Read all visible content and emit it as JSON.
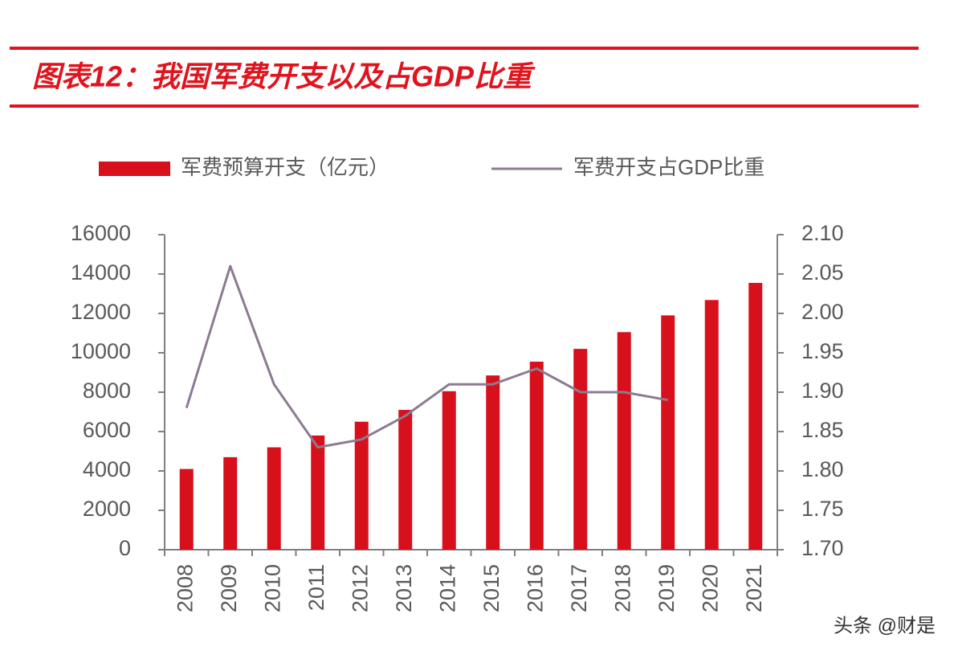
{
  "chart_data": {
    "type": "bar_line",
    "title": "图表12：我国军费开支以及占GDP比重",
    "categories": [
      "2008",
      "2009",
      "2010",
      "2011",
      "2012",
      "2013",
      "2014",
      "2015",
      "2016",
      "2017",
      "2018",
      "2019",
      "2020",
      "2021"
    ],
    "series": [
      {
        "name": "军费预算开支（亿元）",
        "color": "#d7101c",
        "type": "bar",
        "values": [
          4100,
          4700,
          5200,
          5800,
          6500,
          7100,
          8050,
          8850,
          9550,
          10200,
          11050,
          11900,
          12680,
          13550
        ]
      },
      {
        "name": "军费开支占GDP比重",
        "color": "#8c7a92",
        "type": "line",
        "axis": "y2",
        "values": [
          1.88,
          2.06,
          1.91,
          1.83,
          1.84,
          1.87,
          1.91,
          1.91,
          1.93,
          1.9,
          1.9,
          1.89,
          null,
          null
        ]
      }
    ],
    "ylim": [
      0,
      16000
    ],
    "yticks": [
      0,
      2000,
      4000,
      6000,
      8000,
      10000,
      12000,
      14000,
      16000
    ],
    "y2lim": [
      1.7,
      2.1
    ],
    "y2ticks": [
      {
        "value": 1.7,
        "label": "1.70"
      },
      1.75,
      {
        "value": 1.8,
        "label": "1.80"
      },
      1.85,
      {
        "value": 1.9,
        "label": "1.90"
      },
      1.95,
      {
        "value": 2.0,
        "label": "2.00"
      },
      2.05,
      {
        "value": 2.1,
        "label": "2.10"
      }
    ],
    "watermark": "头条 @财是"
  }
}
